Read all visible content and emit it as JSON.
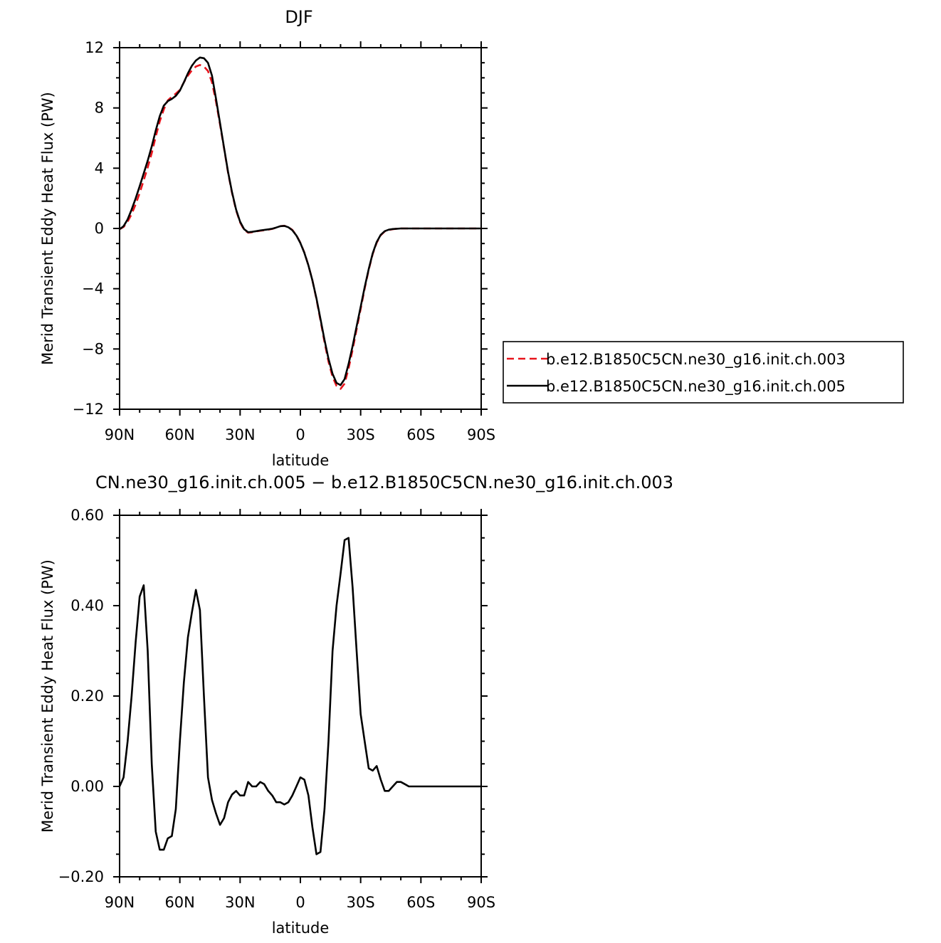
{
  "chart_data": [
    {
      "type": "line",
      "title": "DJF",
      "xlabel": "latitude",
      "ylabel": "Merid Transient Eddy Heat Flux (PW)",
      "xlim": [
        90,
        -90
      ],
      "ylim": [
        -12,
        12
      ],
      "x_ticks": [
        90,
        60,
        30,
        0,
        -30,
        -60,
        -90
      ],
      "x_tick_labels": [
        "90N",
        "60N",
        "30N",
        "0",
        "30S",
        "60S",
        "90S"
      ],
      "y_ticks": [
        -12,
        -8,
        -4,
        0,
        4,
        8,
        12
      ],
      "y_tick_labels": [
        "−12",
        "−8",
        "−4",
        "0",
        "4",
        "8",
        "12"
      ],
      "legend_position": "right",
      "series": [
        {
          "name": "b.e12.B1850C5CN.ne30_g16.init.ch.003",
          "color": "#e8141c",
          "dash": "dashed",
          "x": [
            90,
            88,
            86,
            84,
            82,
            80,
            78,
            76,
            74,
            72,
            70,
            68,
            66,
            64,
            62,
            60,
            58,
            56,
            54,
            52,
            50,
            48,
            46,
            44,
            42,
            40,
            38,
            36,
            34,
            32,
            30,
            28,
            26,
            24,
            22,
            20,
            18,
            16,
            14,
            12,
            10,
            8,
            6,
            4,
            2,
            0,
            -2,
            -4,
            -6,
            -8,
            -10,
            -12,
            -14,
            -16,
            -18,
            -20,
            -22,
            -24,
            -26,
            -28,
            -30,
            -32,
            -34,
            -36,
            -38,
            -40,
            -42,
            -44,
            -46,
            -48,
            -50,
            -52,
            -54,
            -56,
            -58,
            -60,
            -62,
            -64,
            -66,
            -68,
            -70,
            -72,
            -74,
            -76,
            -78,
            -80,
            -82,
            -84,
            -86,
            -88,
            -90
          ],
          "y": [
            -0.05,
            0.1,
            0.45,
            0.95,
            1.6,
            2.35,
            3.2,
            4.05,
            5.0,
            6.1,
            7.1,
            7.9,
            8.5,
            8.75,
            8.95,
            9.2,
            9.7,
            10.15,
            10.5,
            10.75,
            10.85,
            10.75,
            10.45,
            9.7,
            8.4,
            6.9,
            5.3,
            3.7,
            2.35,
            1.2,
            0.4,
            -0.1,
            -0.28,
            -0.25,
            -0.2,
            -0.15,
            -0.12,
            -0.08,
            -0.03,
            0.05,
            0.15,
            0.18,
            0.1,
            -0.1,
            -0.45,
            -0.95,
            -1.6,
            -2.45,
            -3.45,
            -4.7,
            -6.1,
            -7.55,
            -8.85,
            -9.85,
            -10.45,
            -10.65,
            -10.3,
            -9.3,
            -8.05,
            -6.7,
            -5.35,
            -4.0,
            -2.75,
            -1.7,
            -0.95,
            -0.45,
            -0.2,
            -0.1,
            -0.05,
            -0.02,
            0.0,
            0.0,
            0.0,
            0.0,
            0.0,
            0.0,
            0.0,
            0.0,
            0.0,
            0.0,
            0.0,
            0.0,
            0.0,
            0.0,
            0.0,
            0.0,
            0.0,
            0.0,
            0.0,
            0.0,
            0.0
          ],
          "x_note": "",
          "y_note": ""
        },
        {
          "name": "b.e12.B1850C5CN.ne30_g16.init.ch.005",
          "color": "#000000",
          "dash": "solid",
          "x": [
            90,
            88,
            86,
            84,
            82,
            80,
            78,
            76,
            74,
            72,
            70,
            68,
            66,
            64,
            62,
            60,
            58,
            56,
            54,
            52,
            50,
            48,
            46,
            44,
            42,
            40,
            38,
            36,
            34,
            32,
            30,
            28,
            26,
            24,
            22,
            20,
            18,
            16,
            14,
            12,
            10,
            8,
            6,
            4,
            2,
            0,
            -2,
            -4,
            -6,
            -8,
            -10,
            -12,
            -14,
            -16,
            -18,
            -20,
            -22,
            -24,
            -26,
            -28,
            -30,
            -32,
            -34,
            -36,
            -38,
            -40,
            -42,
            -44,
            -46,
            -48,
            -50,
            -52,
            -54,
            -56,
            -58,
            -60,
            -62,
            -64,
            -66,
            -68,
            -70,
            -72,
            -74,
            -76,
            -78,
            -80,
            -82,
            -84,
            -86,
            -88,
            -90
          ],
          "y": [
            -0.05,
            0.15,
            0.6,
            1.25,
            2.0,
            2.8,
            3.65,
            4.5,
            5.45,
            6.5,
            7.45,
            8.15,
            8.45,
            8.6,
            8.8,
            9.15,
            9.7,
            10.3,
            10.8,
            11.15,
            11.35,
            11.3,
            11.0,
            10.15,
            8.6,
            7.0,
            5.35,
            3.75,
            2.4,
            1.25,
            0.45,
            -0.05,
            -0.25,
            -0.22,
            -0.18,
            -0.13,
            -0.1,
            -0.06,
            -0.02,
            0.06,
            0.15,
            0.17,
            0.08,
            -0.12,
            -0.47,
            -0.97,
            -1.62,
            -2.45,
            -3.45,
            -4.65,
            -6.0,
            -7.4,
            -8.65,
            -9.65,
            -10.25,
            -10.4,
            -10.0,
            -9.0,
            -7.8,
            -6.5,
            -5.2,
            -3.9,
            -2.7,
            -1.65,
            -0.9,
            -0.42,
            -0.18,
            -0.08,
            -0.04,
            -0.02,
            0.0,
            0.0,
            0.0,
            0.0,
            0.0,
            0.0,
            0.0,
            0.0,
            0.0,
            0.0,
            0.0,
            0.0,
            0.0,
            0.0,
            0.0,
            0.0,
            0.0,
            0.0,
            0.0,
            0.0,
            0.0
          ]
        }
      ]
    },
    {
      "type": "line",
      "title": "CN.ne30_g16.init.ch.005 − b.e12.B1850C5CN.ne30_g16.init.ch.003",
      "xlabel": "latitude",
      "ylabel": "Merid Transient Eddy Heat Flux (PW)",
      "xlim": [
        90,
        -90
      ],
      "ylim": [
        -0.2,
        0.6
      ],
      "x_ticks": [
        90,
        60,
        30,
        0,
        -30,
        -60,
        -90
      ],
      "x_tick_labels": [
        "90N",
        "60N",
        "30N",
        "0",
        "30S",
        "60S",
        "90S"
      ],
      "y_ticks": [
        -0.2,
        0.0,
        0.2,
        0.4,
        0.6
      ],
      "y_tick_labels": [
        "−0.20",
        "0.00",
        "0.20",
        "0.40",
        "0.60"
      ],
      "series": [
        {
          "color": "#000000",
          "dash": "solid",
          "x": [
            90,
            88,
            86,
            84,
            82,
            80,
            78,
            76,
            74,
            72,
            70,
            68,
            66,
            64,
            62,
            60,
            58,
            56,
            54,
            52,
            50,
            48,
            46,
            44,
            42,
            40,
            38,
            36,
            34,
            32,
            30,
            28,
            26,
            24,
            22,
            20,
            18,
            16,
            14,
            12,
            10,
            8,
            6,
            4,
            2,
            0,
            -2,
            -4,
            -6,
            -8,
            -10,
            -12,
            -14,
            -16,
            -18,
            -20,
            -22,
            -24,
            -26,
            -28,
            -30,
            -32,
            -34,
            -36,
            -38,
            -40,
            -42,
            -44,
            -46,
            -48,
            -50,
            -52,
            -54,
            -56,
            -58,
            -60,
            -62,
            -64,
            -66,
            -68,
            -70,
            -72,
            -74,
            -76,
            -78,
            -80,
            -82,
            -84,
            -86,
            -88,
            -90
          ],
          "y": [
            0.0,
            0.02,
            0.1,
            0.2,
            0.32,
            0.42,
            0.445,
            0.3,
            0.05,
            -0.1,
            -0.14,
            -0.14,
            -0.115,
            -0.11,
            -0.05,
            0.1,
            0.23,
            0.33,
            0.385,
            0.435,
            0.39,
            0.2,
            0.02,
            -0.03,
            -0.06,
            -0.085,
            -0.07,
            -0.035,
            -0.018,
            -0.01,
            -0.02,
            -0.02,
            0.01,
            0.0,
            0.0,
            0.01,
            0.005,
            -0.01,
            -0.02,
            -0.035,
            -0.035,
            -0.04,
            -0.035,
            -0.02,
            0.0,
            0.02,
            0.015,
            -0.02,
            -0.09,
            -0.15,
            -0.145,
            -0.05,
            0.1,
            0.3,
            0.4,
            0.47,
            0.545,
            0.55,
            0.44,
            0.3,
            0.16,
            0.1,
            0.04,
            0.035,
            0.045,
            0.015,
            -0.01,
            -0.01,
            0.0,
            0.01,
            0.01,
            0.005,
            0.0,
            0.0,
            0.0,
            0.0,
            0.0,
            0.0,
            0.0,
            0.0,
            0.0,
            0.0,
            0.0,
            0.0,
            0.0,
            0.0,
            0.0,
            0.0,
            0.0,
            0.0,
            0.0
          ]
        }
      ]
    }
  ]
}
